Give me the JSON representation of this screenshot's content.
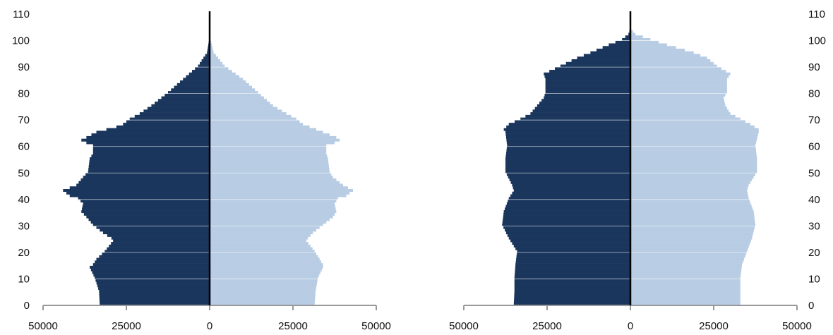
{
  "colors": {
    "male": "#1a365d",
    "female": "#b8cce4",
    "axis": "#999999",
    "center_line": "#000000",
    "grid": "#ffffff"
  },
  "chart_data": [
    {
      "type": "bar",
      "orientation": "horizontal-pyramid",
      "title": "",
      "xlim": [
        -50000,
        50000
      ],
      "ylim": [
        0,
        110
      ],
      "grid": true,
      "x_ticks": [
        -50000,
        -25000,
        0,
        25000,
        50000
      ],
      "x_tick_labels": [
        "50000",
        "25000",
        "0",
        "25000",
        "50000"
      ],
      "y_ticks": [
        0,
        10,
        20,
        30,
        40,
        50,
        60,
        70,
        80,
        90,
        100,
        110
      ],
      "y_tick_labels": [
        "0",
        "10",
        "20",
        "30",
        "40",
        "50",
        "60",
        "70",
        "80",
        "90",
        "100",
        "110"
      ],
      "y_labels_side": "left",
      "age_anchors": [
        0,
        5,
        10,
        14,
        15,
        17,
        20,
        24,
        25,
        27,
        30,
        33,
        35,
        38,
        40,
        41,
        43,
        45,
        48,
        50,
        55,
        57,
        60,
        61,
        62,
        63,
        65,
        67,
        68,
        70,
        72,
        75,
        80,
        85,
        90,
        95,
        100,
        104
      ],
      "series": [
        {
          "side": "left",
          "values": [
            33000,
            33200,
            34500,
            36000,
            35000,
            34000,
            31500,
            29000,
            29500,
            32000,
            35000,
            37000,
            38500,
            38000,
            39500,
            42000,
            44000,
            40000,
            38000,
            36500,
            36000,
            35000,
            35000,
            37000,
            38500,
            37000,
            34000,
            28000,
            26000,
            24000,
            21000,
            17500,
            12500,
            8000,
            3500,
            800,
            150,
            0
          ]
        },
        {
          "side": "right",
          "values": [
            31500,
            31800,
            32500,
            34000,
            34000,
            33000,
            31500,
            29000,
            29500,
            31000,
            34000,
            37000,
            38000,
            37500,
            38500,
            41000,
            43000,
            40000,
            37000,
            36000,
            35500,
            35000,
            35000,
            37500,
            39000,
            38000,
            34000,
            30000,
            28000,
            26000,
            23000,
            19000,
            14500,
            10000,
            4500,
            1200,
            300,
            0
          ]
        }
      ]
    },
    {
      "type": "bar",
      "orientation": "horizontal-pyramid",
      "title": "",
      "xlim": [
        -50000,
        50000
      ],
      "ylim": [
        0,
        110
      ],
      "grid": true,
      "x_ticks": [
        -50000,
        -25000,
        0,
        25000,
        50000
      ],
      "x_tick_labels": [
        "50000",
        "25000",
        "0",
        "25000",
        "50000"
      ],
      "y_ticks": [
        0,
        10,
        20,
        30,
        40,
        50,
        60,
        70,
        80,
        90,
        100,
        110
      ],
      "y_tick_labels": [
        "0",
        "10",
        "20",
        "30",
        "40",
        "50",
        "60",
        "70",
        "80",
        "90",
        "100",
        "110"
      ],
      "y_labels_side": "right",
      "age_anchors": [
        0,
        5,
        10,
        15,
        20,
        25,
        30,
        35,
        40,
        43,
        45,
        50,
        55,
        60,
        65,
        66,
        68,
        70,
        72,
        75,
        78,
        80,
        83,
        85,
        87,
        90,
        93,
        95,
        98,
        100,
        102,
        104
      ],
      "series": [
        {
          "side": "left",
          "values": [
            35000,
            34800,
            34800,
            34500,
            34000,
            36500,
            38500,
            38000,
            36500,
            35000,
            35500,
            37500,
            37500,
            37000,
            37500,
            38000,
            36500,
            33000,
            30000,
            28000,
            26000,
            25500,
            25500,
            25500,
            26000,
            21000,
            16000,
            12000,
            6500,
            2500,
            600,
            0
          ]
        },
        {
          "side": "right",
          "values": [
            33000,
            33000,
            33000,
            33500,
            35000,
            36500,
            37500,
            37000,
            35500,
            35000,
            35500,
            38000,
            38000,
            37500,
            38500,
            38500,
            36000,
            33000,
            30000,
            28500,
            28000,
            29000,
            29000,
            29000,
            30000,
            26000,
            23000,
            19000,
            11000,
            6000,
            1500,
            0
          ]
        }
      ]
    }
  ]
}
